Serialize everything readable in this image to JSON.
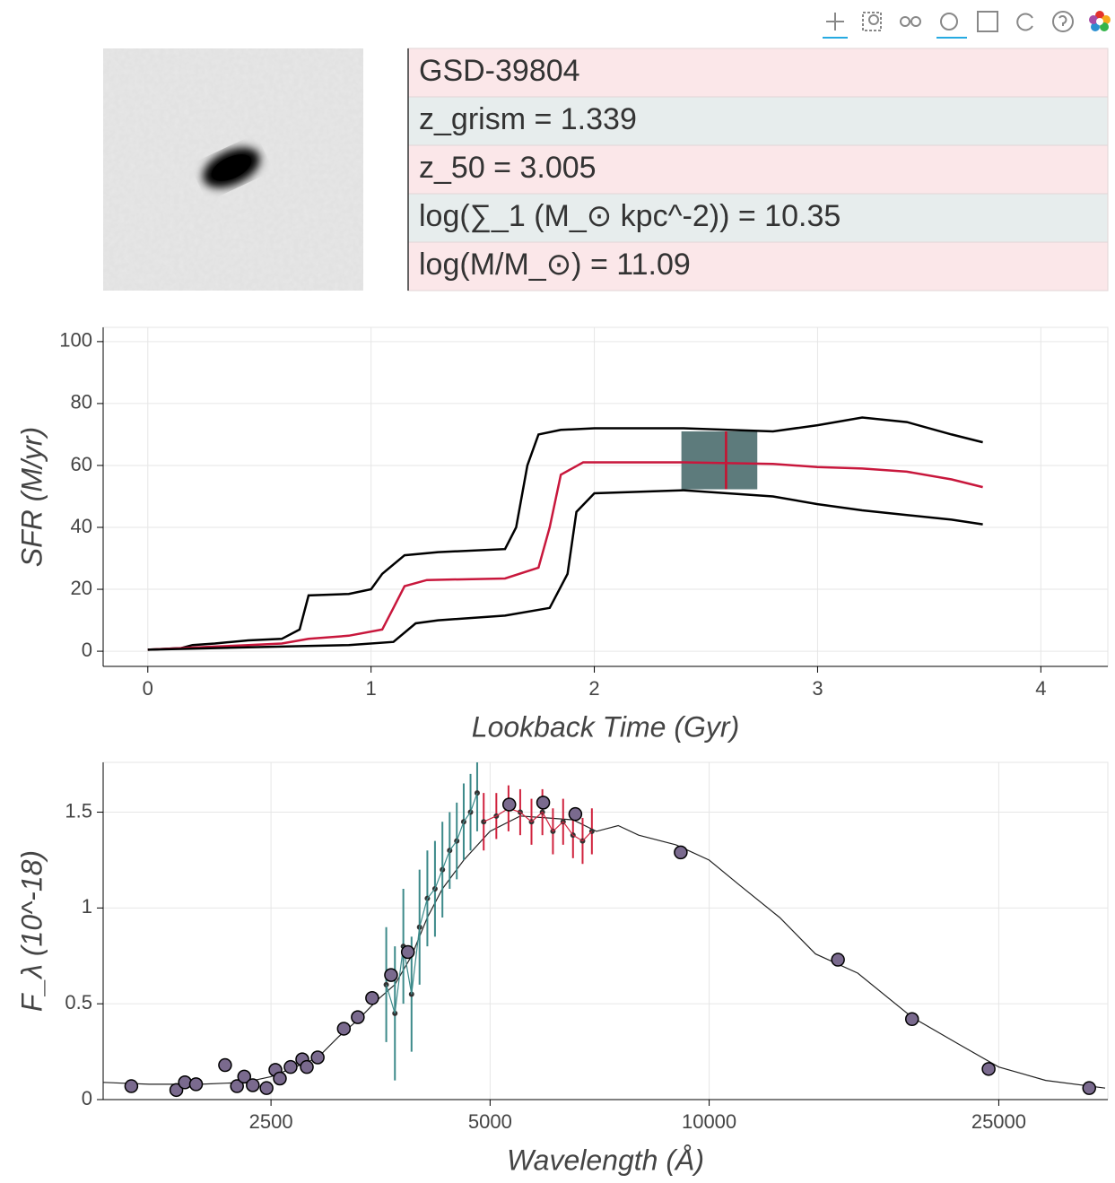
{
  "info": {
    "rows": [
      "GSD-39804",
      "z_grism = 1.339",
      "z_50 = 3.005",
      "log(∑_1 (M_⊙ kpc^-2)) = 10.35",
      "log(M/M_⊙) = 11.09"
    ]
  },
  "chart_data": [
    {
      "type": "line",
      "xlabel": "Lookback Time (Gyr)",
      "ylabel": "SFR (M/yr)",
      "xlim": [
        -0.2,
        4.3
      ],
      "ylim": [
        -4.9,
        104.6
      ],
      "xticks": [
        0,
        1,
        2,
        3,
        4
      ],
      "yticks": [
        0,
        20,
        40,
        60,
        80,
        100
      ],
      "grid": true,
      "series": [
        {
          "color": "#000000",
          "x": [
            0,
            0.15,
            0.2,
            0.3,
            0.45,
            0.6,
            0.68,
            0.72,
            0.9,
            1.0,
            1.05,
            1.15,
            1.3,
            1.6,
            1.65,
            1.7,
            1.75,
            1.85,
            2.0,
            2.4,
            2.8,
            3.0,
            3.2,
            3.4,
            3.6,
            3.74
          ],
          "values": [
            0.5,
            1,
            2,
            2.5,
            3.5,
            4,
            7,
            18,
            18.5,
            20,
            25,
            31,
            32,
            33,
            40,
            60,
            70,
            71.5,
            72,
            72,
            71,
            73,
            75.5,
            74,
            70,
            67.5
          ]
        },
        {
          "color": "#c8173c",
          "x": [
            0,
            0.3,
            0.45,
            0.6,
            0.72,
            0.9,
            1.05,
            1.1,
            1.15,
            1.25,
            1.6,
            1.75,
            1.8,
            1.85,
            1.95,
            2.4,
            2.8,
            3.0,
            3.2,
            3.4,
            3.6,
            3.74
          ],
          "values": [
            0.5,
            1.5,
            2,
            2.5,
            4,
            5,
            7,
            14,
            21,
            23,
            23.5,
            27,
            40,
            57,
            61,
            61,
            60.5,
            59.5,
            59,
            58,
            55.5,
            53
          ]
        },
        {
          "color": "#000000",
          "x": [
            0,
            0.3,
            0.6,
            0.9,
            1.1,
            1.2,
            1.3,
            1.6,
            1.8,
            1.88,
            1.92,
            2.0,
            2.4,
            2.8,
            3.0,
            3.2,
            3.4,
            3.6,
            3.74
          ],
          "values": [
            0.5,
            1,
            1.5,
            2,
            3,
            9,
            10,
            11.5,
            14,
            25,
            45,
            51,
            52,
            50,
            47.5,
            45.5,
            44,
            42.5,
            41
          ]
        }
      ],
      "highlight": {
        "xrange": [
          2.39,
          2.73
        ],
        "yrange": [
          52.3,
          71
        ],
        "x": 2.59,
        "color": "#5d7b7c",
        "line_color": "#c8102e"
      }
    },
    {
      "type": "line",
      "xlabel": "Wavelength (Å)",
      "ylabel": "F_λ  (10^-18)",
      "xlog": true,
      "xlim": [
        1470,
        35300
      ],
      "ylim": [
        0,
        1.76
      ],
      "xticks": [
        2500,
        5000,
        10000,
        25000
      ],
      "yticks": [
        0,
        0.5,
        1,
        1.5
      ],
      "grid": true,
      "series": [
        {
          "type": "line",
          "color": "#222222",
          "x": [
            1470,
            1700,
            2000,
            2300,
            2500,
            2700,
            2900,
            3100,
            3300,
            3500,
            3700,
            3900,
            4100,
            4300,
            4600,
            5000,
            5500,
            6000,
            6500,
            7000,
            7500,
            8000,
            9000,
            10000,
            11000,
            12500,
            14000,
            16000,
            19000,
            22000,
            25000,
            29000,
            35000
          ],
          "values": [
            0.09,
            0.08,
            0.08,
            0.09,
            0.12,
            0.17,
            0.22,
            0.33,
            0.42,
            0.52,
            0.6,
            0.75,
            0.95,
            1.1,
            1.25,
            1.4,
            1.48,
            1.47,
            1.46,
            1.4,
            1.43,
            1.38,
            1.33,
            1.25,
            1.12,
            0.95,
            0.76,
            0.66,
            0.43,
            0.29,
            0.17,
            0.1,
            0.06
          ]
        },
        {
          "type": "errorbar",
          "color": "#3d8a8a",
          "x": [
            3600,
            3700,
            3800,
            3900,
            4000,
            4100,
            4200,
            4300,
            4400,
            4500,
            4600,
            4700,
            4800
          ],
          "values": [
            0.6,
            0.45,
            0.8,
            0.55,
            0.9,
            1.05,
            1.1,
            1.2,
            1.3,
            1.35,
            1.45,
            1.5,
            1.6
          ],
          "errors": [
            0.3,
            0.35,
            0.3,
            0.3,
            0.3,
            0.25,
            0.25,
            0.25,
            0.2,
            0.2,
            0.2,
            0.2,
            0.2
          ]
        },
        {
          "type": "errorbar",
          "color": "#d0233e",
          "x": [
            4900,
            5100,
            5300,
            5500,
            5700,
            5900,
            6100,
            6300,
            6500,
            6700,
            6900
          ],
          "values": [
            1.45,
            1.48,
            1.52,
            1.5,
            1.45,
            1.5,
            1.4,
            1.45,
            1.38,
            1.35,
            1.4
          ],
          "errors": [
            0.15,
            0.12,
            0.12,
            0.12,
            0.12,
            0.12,
            0.12,
            0.12,
            0.12,
            0.12,
            0.12
          ]
        },
        {
          "type": "scatter",
          "color": "#7a6a8e",
          "x": [
            1607,
            1853,
            1904,
            1972,
            2162,
            2245,
            2297,
            2360,
            2465,
            2535,
            2571,
            2660,
            2760,
            2800,
            2898,
            3148,
            3290,
            3443,
            3655,
            3855,
            5313,
            5915,
            6548,
            9140,
            15030,
            19000,
            24210,
            33280
          ],
          "values": [
            0.07,
            0.05,
            0.09,
            0.08,
            0.18,
            0.07,
            0.12,
            0.075,
            0.06,
            0.155,
            0.11,
            0.17,
            0.21,
            0.17,
            0.22,
            0.37,
            0.43,
            0.53,
            0.65,
            0.77,
            1.54,
            1.55,
            1.49,
            1.29,
            0.73,
            0.42,
            0.16,
            0.06
          ]
        }
      ]
    }
  ]
}
